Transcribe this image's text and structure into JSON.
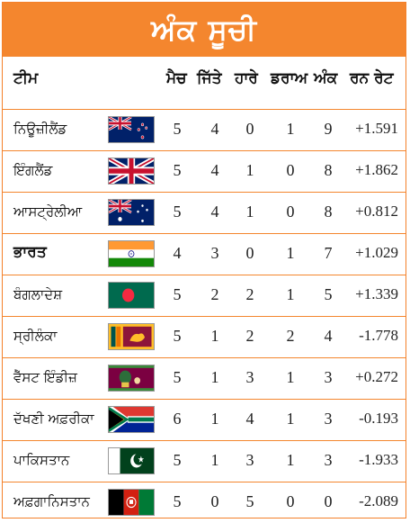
{
  "title": "ਅੰਕ ਸੂਚੀ",
  "headers": {
    "team": "ਟੀਮ",
    "matches": "ਮੈਚ",
    "won": "ਜਿੱਤੇ",
    "lost": "ਹਾਰੇ",
    "draw": "ਡਰਾਅ",
    "points": "ਅੰਕ",
    "run_rate": "ਰਨ ਰੇਟ"
  },
  "rows": [
    {
      "team": "ਨਿਊਜ਼ੀਲੈਂਡ",
      "flag": "new-zealand",
      "matches": "5",
      "won": "4",
      "lost": "0",
      "draw": "1",
      "points": "9",
      "run_rate": "+1.591"
    },
    {
      "team": "ਇੰਗਲੈਂਡ",
      "flag": "england",
      "matches": "5",
      "won": "4",
      "lost": "1",
      "draw": "0",
      "points": "8",
      "run_rate": "+1.862"
    },
    {
      "team": "ਆਸਟ੍ਰੇਲੀਆ",
      "flag": "australia",
      "matches": "5",
      "won": "4",
      "lost": "1",
      "draw": "0",
      "points": "8",
      "run_rate": "+0.812"
    },
    {
      "team": "ਭਾਰਤ",
      "flag": "india",
      "matches": "4",
      "won": "3",
      "lost": "0",
      "draw": "1",
      "points": "7",
      "run_rate": "+1.029"
    },
    {
      "team": "ਬੰਗਲਾਦੇਸ਼",
      "flag": "bangladesh",
      "matches": "5",
      "won": "2",
      "lost": "2",
      "draw": "1",
      "points": "5",
      "run_rate": "+1.339"
    },
    {
      "team": "ਸ੍ਰੀਲੰਕਾ",
      "flag": "sri-lanka",
      "matches": "5",
      "won": "1",
      "lost": "2",
      "draw": "2",
      "points": "4",
      "run_rate": "-1.778"
    },
    {
      "team": "ਵੈੱਸਟ ਇੰਡੀਜ਼",
      "flag": "west-indies",
      "matches": "5",
      "won": "1",
      "lost": "3",
      "draw": "1",
      "points": "3",
      "run_rate": "+0.272"
    },
    {
      "team": "ਦੱਖਣੀ ਅਫ਼ਰੀਕਾ",
      "flag": "south-africa",
      "matches": "6",
      "won": "1",
      "lost": "4",
      "draw": "1",
      "points": "3",
      "run_rate": "-0.193"
    },
    {
      "team": "ਪਾਕਿਸਤਾਨ",
      "flag": "pakistan",
      "matches": "5",
      "won": "1",
      "lost": "3",
      "draw": "1",
      "points": "3",
      "run_rate": "-1.933"
    },
    {
      "team": "ਅਫ਼ਗਾਨਿਸਤਾਨ",
      "flag": "afghanistan",
      "matches": "5",
      "won": "0",
      "lost": "5",
      "draw": "0",
      "points": "0",
      "run_rate": "-2.089"
    }
  ],
  "colors": {
    "accent": "#f4862e",
    "text": "#111111"
  }
}
